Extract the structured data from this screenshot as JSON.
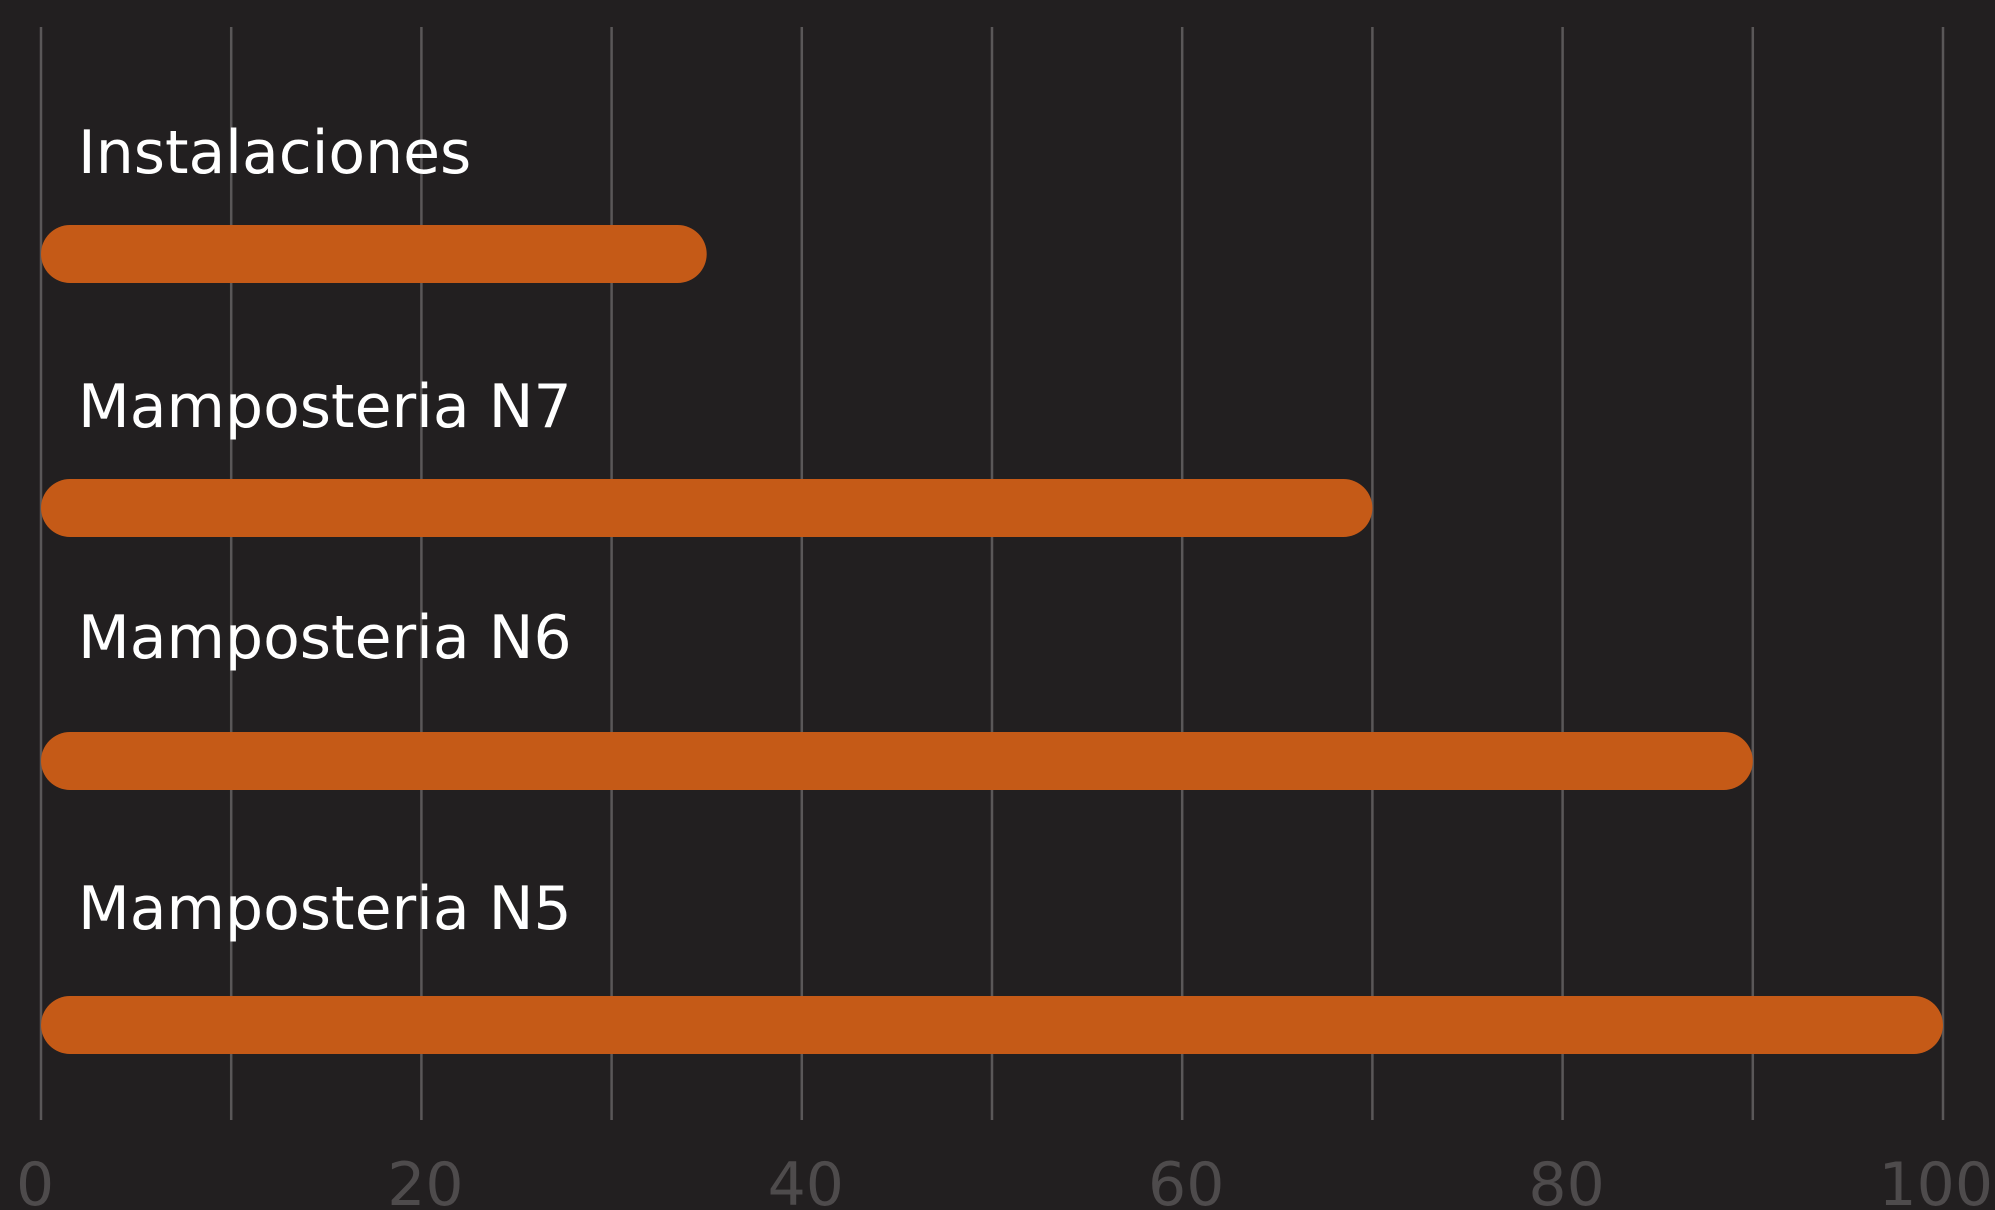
{
  "chart_data": {
    "type": "bar",
    "orientation": "horizontal",
    "categories": [
      "Instalaciones",
      "Mamposteria N7",
      "Mamposteria N6",
      "Mamposteria N5"
    ],
    "values": [
      35,
      70,
      90,
      100
    ],
    "xlim": [
      0,
      100
    ],
    "xticks": [
      "0",
      "20",
      "40",
      "60",
      "80",
      "100"
    ],
    "grid": true,
    "legend": "none",
    "colors": {
      "background": "#221f20",
      "bar": "#c55a17",
      "grid": "#5a5758",
      "bar_label": "#ffffff",
      "tick_label": "#4e4b4c"
    }
  }
}
